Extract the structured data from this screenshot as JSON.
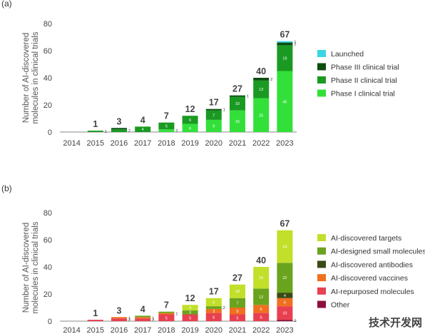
{
  "watermark": "技术开发网",
  "chart_data": [
    {
      "id": "a",
      "panel_label": "(a)",
      "type": "bar",
      "stacked": true,
      "ylabel": "Number of AI-discovered molecules in clinical trials",
      "ylabel_lines": [
        "Number of AI-discovered",
        "molecules in clinical trials"
      ],
      "ylim": [
        0,
        80
      ],
      "yticks": [
        "0",
        "20",
        "40",
        "60",
        "80"
      ],
      "categories": [
        "2014",
        "2015",
        "2016",
        "2017",
        "2018",
        "2019",
        "2020",
        "2021",
        "2022",
        "2023"
      ],
      "totals": [
        "",
        "1",
        "3",
        "4",
        "7",
        "12",
        "17",
        "27",
        "40",
        "67"
      ],
      "legend_position": "right",
      "series": [
        {
          "name": "Phase I clinical trial",
          "color": "#33e03a",
          "values": [
            0,
            0,
            0,
            0,
            2,
            6,
            9,
            16,
            25,
            45
          ],
          "labels": [
            "",
            "",
            "",
            "",
            "2",
            "6",
            "9",
            "16",
            "25",
            "45"
          ]
        },
        {
          "name": "Phase II clinical trial",
          "color": "#1a9a22",
          "values": [
            0,
            1,
            2,
            4,
            5,
            6,
            7,
            10,
            13,
            19
          ],
          "labels": [
            "",
            "1",
            "2",
            "4",
            "5",
            "6",
            "7",
            "10",
            "13",
            "19"
          ]
        },
        {
          "name": "Phase III clinical trial",
          "color": "#0b4d10",
          "values": [
            0,
            0,
            1,
            0,
            0,
            0,
            1,
            1,
            2,
            2
          ],
          "labels": [
            "",
            "",
            "",
            "",
            "",
            "",
            "1",
            "1",
            "2",
            "2"
          ]
        },
        {
          "name": "Launched",
          "color": "#3ad6e6",
          "values": [
            0,
            0,
            0,
            0,
            0,
            0,
            0,
            0,
            0,
            1
          ],
          "labels": [
            "",
            "",
            "",
            "",
            "",
            "",
            "",
            "",
            "",
            "1"
          ]
        }
      ]
    },
    {
      "id": "b",
      "panel_label": "(b)",
      "type": "bar",
      "stacked": true,
      "ylabel": "Number of AI-discovered molecules in clinical trials",
      "ylabel_lines": [
        "Number of AI-discovered",
        "molecules in clinical trials"
      ],
      "ylim": [
        0,
        80
      ],
      "yticks": [
        "0",
        "20",
        "40",
        "60",
        "80"
      ],
      "categories": [
        "2014",
        "2015",
        "2016",
        "2017",
        "2018",
        "2019",
        "2020",
        "2021",
        "2022",
        "2023"
      ],
      "totals": [
        "",
        "1",
        "3",
        "4",
        "7",
        "12",
        "17",
        "27",
        "40",
        "67"
      ],
      "legend_position": "right",
      "series": [
        {
          "name": "Other",
          "color": "#8b1040",
          "values": [
            0,
            0,
            0,
            0,
            0,
            0,
            0,
            0,
            0,
            1
          ],
          "labels": [
            "",
            "",
            "",
            "",
            "",
            "",
            "",
            "",
            "",
            "1"
          ]
        },
        {
          "name": "AI-repurposed molecules",
          "color": "#e84050",
          "values": [
            0,
            1,
            2,
            2,
            5,
            5,
            6,
            5,
            6,
            10
          ],
          "labels": [
            "",
            "",
            "2",
            "2",
            "5",
            "5",
            "6",
            "5",
            "6",
            "10"
          ]
        },
        {
          "name": "AI-discovered vaccines",
          "color": "#f07020",
          "values": [
            0,
            0,
            1,
            1,
            1,
            0,
            3,
            5,
            6,
            6
          ],
          "labels": [
            "",
            "",
            "1",
            "1",
            "1",
            "",
            "3",
            "5",
            "6",
            "6"
          ]
        },
        {
          "name": "AI-discovered antibodies",
          "color": "#3a4a14",
          "values": [
            0,
            0,
            0,
            0,
            0,
            0,
            0,
            0,
            0,
            4
          ],
          "labels": [
            "",
            "",
            "",
            "",
            "",
            "",
            "",
            "",
            "",
            "4"
          ]
        },
        {
          "name": "AI-designed small molecules",
          "color": "#6aa31e",
          "values": [
            0,
            0,
            0,
            1,
            1,
            3,
            2,
            7,
            12,
            22
          ],
          "labels": [
            "",
            "",
            "",
            "",
            "",
            "3",
            "2",
            "7",
            "12",
            "22"
          ]
        },
        {
          "name": "AI-discovered targets",
          "color": "#c2df2a",
          "values": [
            0,
            0,
            0,
            0,
            0,
            4,
            6,
            10,
            16,
            24
          ],
          "labels": [
            "",
            "",
            "",
            "",
            "",
            "4",
            "6",
            "10",
            "16",
            "24"
          ]
        }
      ]
    }
  ]
}
